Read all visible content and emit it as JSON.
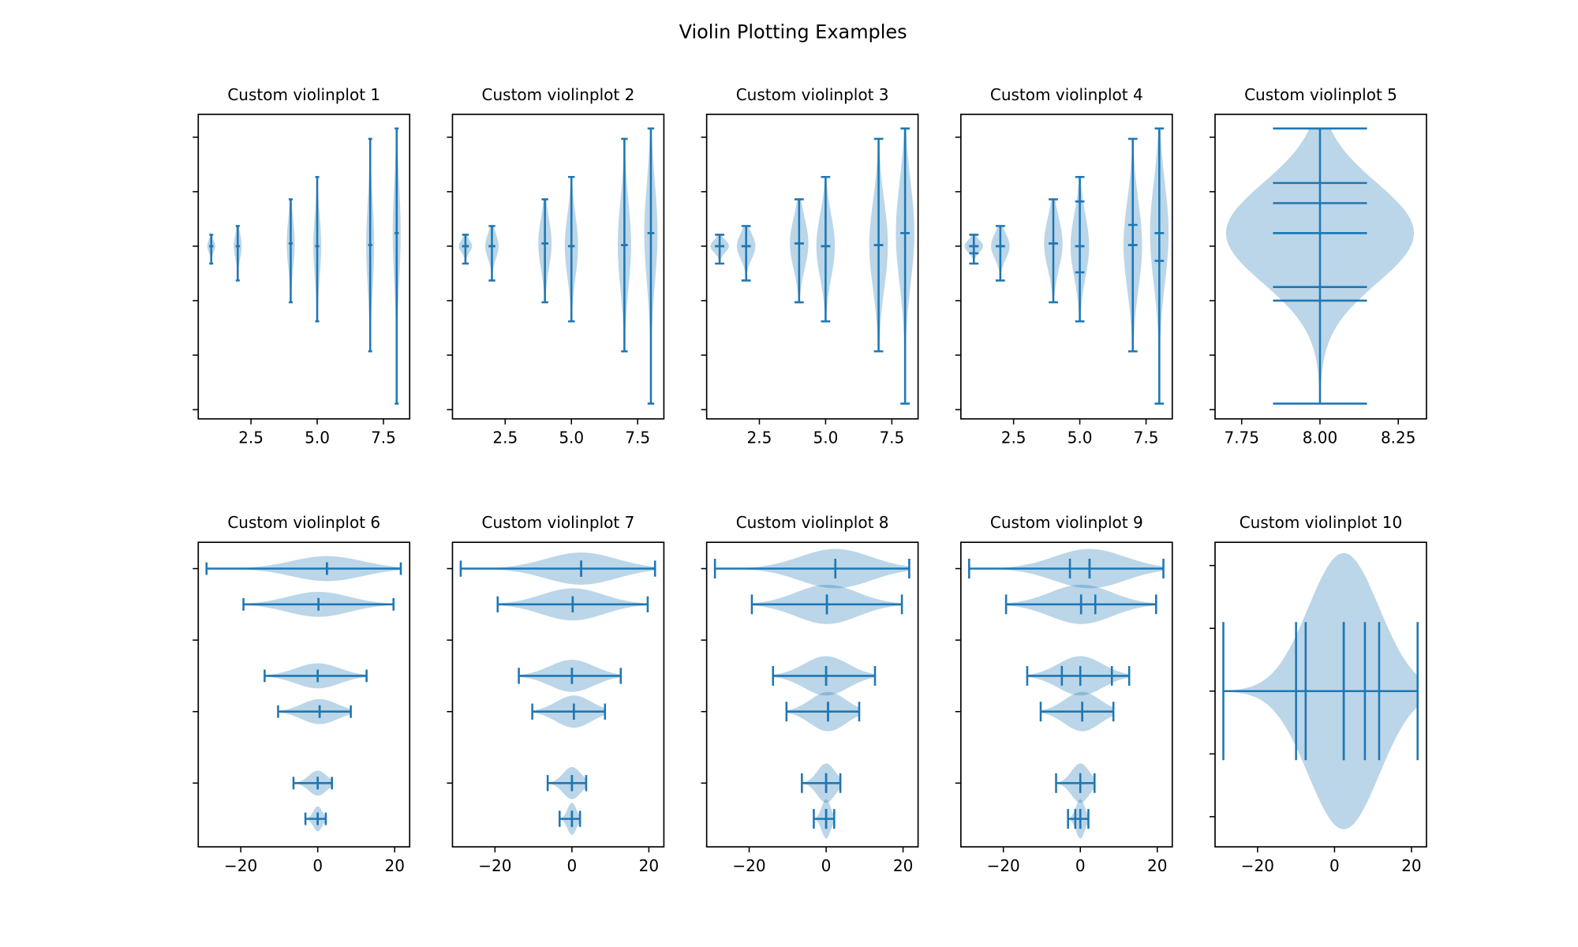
{
  "chart_data": {
    "type": "violin",
    "title": "Violin Plotting Examples",
    "color": "#1f77b4",
    "fill_alpha": 0.3,
    "dataset": [
      {
        "pos": 1,
        "min": -3.2,
        "max": 2.1,
        "mean": 0.0,
        "median": 0.0
      },
      {
        "pos": 2,
        "min": -6.3,
        "max": 3.7,
        "mean": 0.0,
        "median": 0.0
      },
      {
        "pos": 4,
        "min": -10.3,
        "max": 8.6,
        "mean": 0.5,
        "median": 0.5
      },
      {
        "pos": 5,
        "min": -13.8,
        "max": 12.7,
        "mean": 0.0,
        "median": 0.0
      },
      {
        "pos": 7,
        "min": -19.3,
        "max": 19.7,
        "mean": 0.2,
        "median": 0.2
      },
      {
        "pos": 8,
        "min": -28.9,
        "max": 21.6,
        "mean": 2.4,
        "median": 2.4
      }
    ],
    "panels": [
      {
        "title": "Custom violinplot 1",
        "orientation": "vertical",
        "widths": 0.3,
        "positions": [
          1,
          2,
          4,
          5,
          7,
          8
        ],
        "quantiles": [
          [],
          [],
          [],
          [],
          [],
          []
        ],
        "xlim": [
          0.51,
          8.49
        ],
        "ylim": [
          -31.7,
          24.2
        ],
        "xticks": [
          2.5,
          5.0,
          7.5
        ],
        "xticklabels": [
          "2.5",
          "5.0",
          "7.5"
        ],
        "yticks": [
          -30,
          -20,
          -10,
          0,
          10,
          20
        ]
      },
      {
        "title": "Custom violinplot 2",
        "orientation": "vertical",
        "widths": 0.5,
        "positions": [
          1,
          2,
          4,
          5,
          7,
          8
        ],
        "quantiles": [
          [],
          [],
          [],
          [],
          [],
          []
        ],
        "xlim": [
          0.51,
          8.49
        ],
        "ylim": [
          -31.7,
          24.2
        ],
        "xticks": [
          2.5,
          5.0,
          7.5
        ],
        "xticklabels": [
          "2.5",
          "5.0",
          "7.5"
        ],
        "yticks": [
          -30,
          -20,
          -10,
          0,
          10,
          20
        ]
      },
      {
        "title": "Custom violinplot 3",
        "orientation": "vertical",
        "widths": 0.7,
        "positions": [
          1,
          2,
          4,
          5,
          7,
          8
        ],
        "quantiles": [
          [],
          [],
          [],
          [],
          [],
          []
        ],
        "xlim": [
          0.51,
          8.49
        ],
        "ylim": [
          -31.7,
          24.2
        ],
        "xticks": [
          2.5,
          5.0,
          7.5
        ],
        "xticklabels": [
          "2.5",
          "5.0",
          "7.5"
        ],
        "yticks": [
          -30,
          -20,
          -10,
          0,
          10,
          20
        ]
      },
      {
        "title": "Custom violinplot 4",
        "orientation": "vertical",
        "widths": 0.7,
        "positions": [
          1,
          2,
          4,
          5,
          7,
          8
        ],
        "quantiles": [
          [
            -1.3
          ],
          [],
          [],
          [
            -4.8,
            8.2
          ],
          [
            3.9
          ],
          [
            -2.7
          ]
        ],
        "xlim": [
          0.51,
          8.49
        ],
        "ylim": [
          -31.7,
          24.2
        ],
        "xticks": [
          2.5,
          5.0,
          7.5
        ],
        "xticklabels": [
          "2.5",
          "5.0",
          "7.5"
        ],
        "yticks": [
          -30,
          -20,
          -10,
          0,
          10,
          20
        ]
      },
      {
        "title": "Custom violinplot 5",
        "orientation": "vertical",
        "widths": 0.6,
        "positions": [
          8
        ],
        "quantiles": [
          [
            -10.0,
            -7.5,
            7.9,
            11.6
          ]
        ],
        "xlim": [
          7.665,
          8.34
        ],
        "ylim": [
          -31.7,
          24.2
        ],
        "xticks": [
          7.75,
          8.0,
          8.25
        ],
        "xticklabels": [
          "7.75",
          "8.00",
          "8.25"
        ],
        "yticks": [
          -30,
          -20,
          -10,
          0,
          10,
          20
        ]
      },
      {
        "title": "Custom violinplot 6",
        "orientation": "horizontal",
        "widths": 0.7,
        "positions": [
          1,
          2,
          4,
          5,
          7,
          8
        ],
        "quantiles": [
          [],
          [],
          [],
          [],
          [],
          []
        ],
        "xlim": [
          -31.05,
          23.9
        ],
        "ylim": [
          0.217,
          8.736
        ],
        "xticks": [
          -20,
          0,
          20
        ],
        "xticklabels": [
          "−20",
          "0",
          "20"
        ],
        "yticks": [
          2,
          4,
          6,
          8
        ]
      },
      {
        "title": "Custom violinplot 7",
        "orientation": "horizontal",
        "widths": 0.9,
        "positions": [
          1,
          2,
          4,
          5,
          7,
          8
        ],
        "quantiles": [
          [],
          [],
          [],
          [],
          [],
          []
        ],
        "xlim": [
          -31.05,
          23.9
        ],
        "ylim": [
          0.217,
          8.736
        ],
        "xticks": [
          -20,
          0,
          20
        ],
        "xticklabels": [
          "−20",
          "0",
          "20"
        ],
        "yticks": [
          2,
          4,
          6,
          8
        ]
      },
      {
        "title": "Custom violinplot 8",
        "orientation": "horizontal",
        "widths": 1.1,
        "positions": [
          1,
          2,
          4,
          5,
          7,
          8
        ],
        "quantiles": [
          [],
          [],
          [],
          [],
          [],
          []
        ],
        "xlim": [
          -31.05,
          23.9
        ],
        "ylim": [
          0.217,
          8.736
        ],
        "xticks": [
          -20,
          0,
          20
        ],
        "xticklabels": [
          "−20",
          "0",
          "20"
        ],
        "yticks": [
          2,
          4,
          6,
          8
        ]
      },
      {
        "title": "Custom violinplot 9",
        "orientation": "horizontal",
        "widths": 1.1,
        "positions": [
          1,
          2,
          4,
          5,
          7,
          8
        ],
        "quantiles": [
          [
            -1.3
          ],
          [],
          [],
          [
            -4.8,
            8.2
          ],
          [
            3.9
          ],
          [
            -2.7
          ]
        ],
        "xlim": [
          -31.05,
          23.9
        ],
        "ylim": [
          0.217,
          8.736
        ],
        "xticks": [
          -20,
          0,
          20
        ],
        "xticklabels": [
          "−20",
          "0",
          "20"
        ],
        "yticks": [
          2,
          4,
          6,
          8
        ]
      },
      {
        "title": "Custom violinplot 10",
        "orientation": "horizontal",
        "widths": 0.44,
        "positions": [
          8
        ],
        "quantiles": [
          [
            -10.0,
            -7.5,
            7.9,
            11.6
          ]
        ],
        "xlim": [
          -31.05,
          23.9
        ],
        "ylim": [
          7.752,
          8.237
        ],
        "xticks": [
          -20,
          0,
          20
        ],
        "xticklabels": [
          "−20",
          "0",
          "20"
        ],
        "yticks": [
          7.8,
          7.9,
          8.0,
          8.1,
          8.2
        ]
      }
    ]
  }
}
